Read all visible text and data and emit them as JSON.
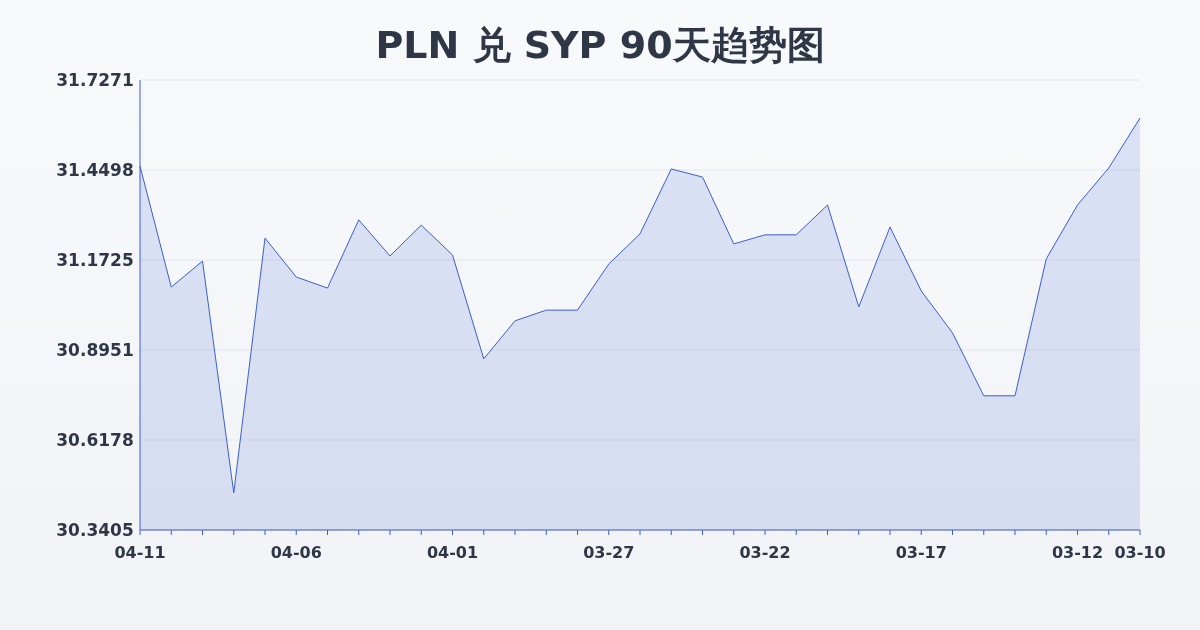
{
  "chart_data": {
    "type": "area",
    "title": "PLN 兑 SYP 90天趋势图",
    "categories": [
      "04-11",
      null,
      null,
      null,
      null,
      "04-06",
      null,
      null,
      null,
      null,
      "04-01",
      null,
      null,
      null,
      null,
      "03-27",
      null,
      null,
      null,
      null,
      "03-22",
      null,
      null,
      null,
      null,
      "03-17",
      null,
      null,
      null,
      null,
      "03-12",
      null,
      "03-10"
    ],
    "series": [
      {
        "color": "#3a5fcd",
        "values": [
          31.462,
          31.089,
          31.169,
          30.455,
          31.24,
          31.12,
          31.086,
          31.296,
          31.185,
          31.28,
          31.188,
          30.868,
          30.985,
          31.018,
          31.018,
          31.16,
          31.253,
          31.453,
          31.428,
          31.222,
          31.25,
          31.25,
          31.342,
          31.028,
          31.274,
          31.077,
          30.948,
          30.754,
          30.754,
          31.176,
          31.342,
          31.456,
          31.61
        ]
      }
    ],
    "ylim": [
      30.3405,
      31.7271
    ],
    "yticks": [
      {
        "value": 30.3405,
        "label": "30.3405"
      },
      {
        "value": 30.6178,
        "label": "30.6178"
      },
      {
        "value": 30.8951,
        "label": "30.8951"
      },
      {
        "value": 31.1725,
        "label": "31.1725"
      },
      {
        "value": 31.4498,
        "label": "31.4498"
      },
      {
        "value": 31.7271,
        "label": "31.7271"
      }
    ],
    "grid": "y",
    "marker": "none",
    "line_style": "solid"
  }
}
